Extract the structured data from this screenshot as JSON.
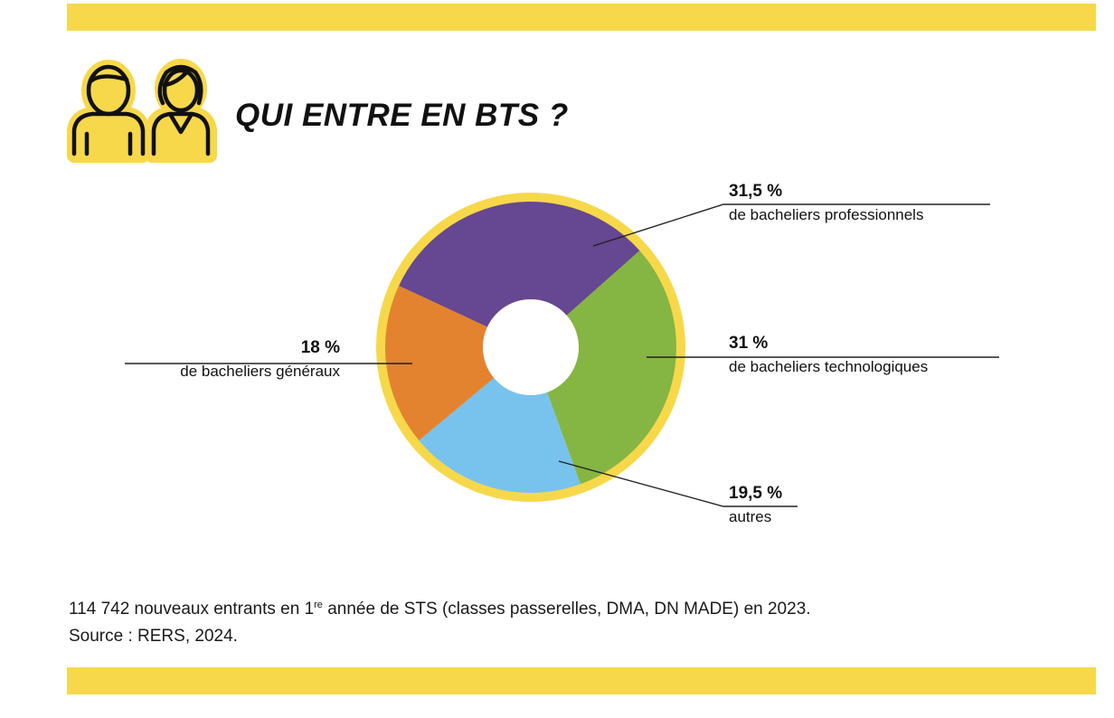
{
  "colors": {
    "band": "#f7d84a",
    "ring": "#f7d84a",
    "purple": "#664791",
    "green": "#85b543",
    "blue": "#78c3ee",
    "orange": "#e3832f"
  },
  "header": {
    "icon": "two-people-icon",
    "title": "QUI ENTRE EN BTS ?"
  },
  "chart_data": {
    "type": "pie",
    "donut": true,
    "title": "QUI ENTRE EN BTS ?",
    "unit": "%",
    "slices": [
      {
        "pct_label": "31,5 %",
        "desc": "de bacheliers professionnels",
        "value": 31.5,
        "color": "#664791"
      },
      {
        "pct_label": "31 %",
        "desc": "de bacheliers technologiques",
        "value": 31,
        "color": "#85b543"
      },
      {
        "pct_label": "19,5 %",
        "desc": "autres",
        "value": 19.5,
        "color": "#78c3ee"
      },
      {
        "pct_label": "18 %",
        "desc": "de bacheliers généraux",
        "value": 18,
        "color": "#e3832f"
      }
    ]
  },
  "footer": {
    "line1_before": "114 742 nouveaux entrants en 1",
    "line1_sup": "re",
    "line1_after": " année de STS (classes passerelles, DMA, DN MADE) en 2023.",
    "source": "Source : RERS, 2024."
  }
}
